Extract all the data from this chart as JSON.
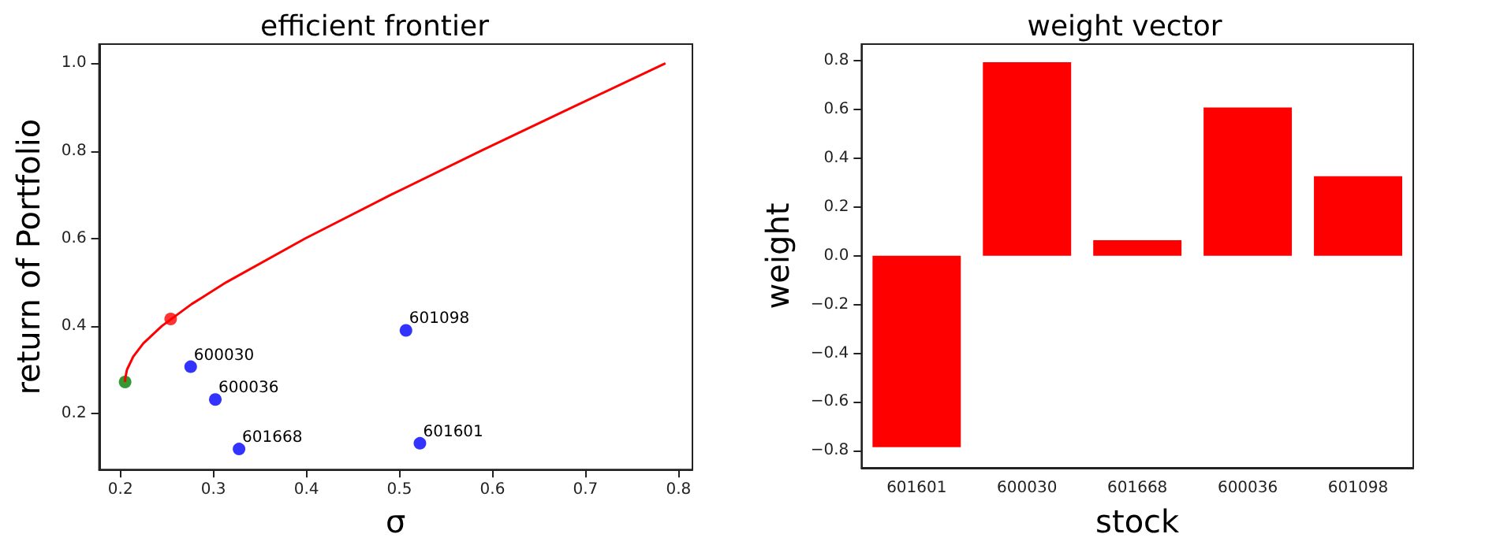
{
  "chart_data": [
    {
      "type": "scatter",
      "title": "efficient frontier",
      "xlabel": "σ",
      "ylabel": "return of Portfolio",
      "grid": false,
      "xlim": [
        0.177,
        0.815
      ],
      "xticks": [
        0.2,
        0.3,
        0.4,
        0.5,
        0.6,
        0.7,
        0.8
      ],
      "ylim": [
        0.072,
        1.044
      ],
      "yticks": [
        0.2,
        0.4,
        0.6,
        0.8,
        {
          "value": 1,
          "label": "1.0"
        }
      ],
      "series": [
        {
          "type": "line",
          "marker": "none",
          "color": "#ff0000",
          "x": [
            0.205,
            0.2051,
            0.207,
            0.2137,
            0.2245,
            0.2446,
            0.2765,
            0.3139,
            0.3987,
            0.4911,
            0.5874,
            0.6861,
            0.786
          ],
          "values": [
            0.272,
            0.28,
            0.3,
            0.33,
            0.36,
            0.4,
            0.45,
            0.5,
            0.6,
            0.7,
            0.8,
            0.9,
            1.0
          ]
        },
        {
          "type": "scatter",
          "marker": "circle",
          "color": "#ff0000",
          "x": [
            0.254
          ],
          "values": [
            0.416
          ]
        },
        {
          "type": "scatter",
          "marker": "circle",
          "color": "#008000",
          "x": [
            0.205
          ],
          "values": [
            0.272
          ]
        },
        {
          "type": "scatter",
          "marker": "circle",
          "color": "#0000ff",
          "x": [
            0.2755,
            0.302,
            0.3275,
            0.507,
            0.522
          ],
          "values": [
            0.307,
            0.232,
            0.119,
            0.39,
            0.132
          ]
        }
      ],
      "annotations": [
        {
          "text": "600030",
          "x": 0.2755,
          "y": 0.307
        },
        {
          "text": "600036",
          "x": 0.302,
          "y": 0.232
        },
        {
          "text": "601668",
          "x": 0.3275,
          "y": 0.119
        },
        {
          "text": "601098",
          "x": 0.507,
          "y": 0.39
        },
        {
          "text": "601601",
          "x": 0.522,
          "y": 0.132
        }
      ]
    },
    {
      "type": "bar",
      "title": "weight vector",
      "xlabel": "stock",
      "ylabel": "weight",
      "grid": false,
      "color": "#ff0000",
      "categories": [
        "601601",
        "600030",
        "601668",
        "600036",
        "601098"
      ],
      "values": [
        -0.785,
        0.794,
        0.064,
        0.608,
        0.326
      ],
      "ylim": [
        -0.87,
        0.868
      ],
      "yticks": [
        {
          "value": -0.8,
          "label": "−0.8"
        },
        {
          "value": -0.6,
          "label": "−0.6"
        },
        {
          "value": -0.4,
          "label": "−0.4"
        },
        {
          "value": -0.2,
          "label": "−0.2"
        },
        {
          "value": 0,
          "label": "0.0"
        },
        0.2,
        0.4,
        0.6,
        0.8
      ]
    }
  ]
}
